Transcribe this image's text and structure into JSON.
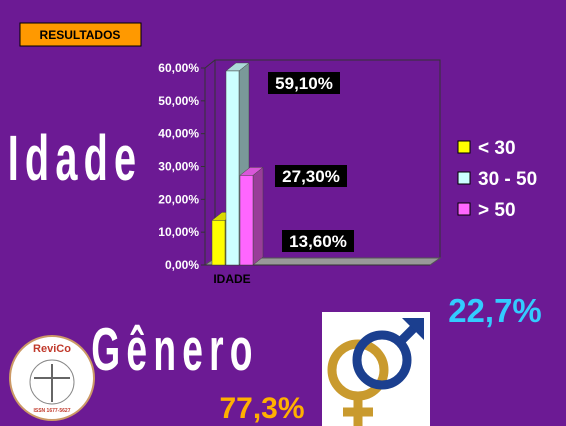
{
  "header": "RESULTADOS",
  "chart_data": {
    "type": "bar3d",
    "categories": [
      "IDADE"
    ],
    "series": [
      {
        "name": "< 30",
        "color": "#ffff00",
        "values": [
          13.6
        ],
        "value_labels": [
          "13,60%"
        ]
      },
      {
        "name": "30 - 50",
        "color": "#ccffff",
        "values": [
          59.1
        ],
        "value_labels": [
          "59,10%"
        ]
      },
      {
        "name": "> 50",
        "color": "#ff66ff",
        "values": [
          27.3
        ],
        "value_labels": [
          "27,30%"
        ]
      }
    ],
    "ylim": [
      0,
      60
    ],
    "yticks": [
      {
        "value": 0,
        "label": "0,00%"
      },
      {
        "value": 10,
        "label": "10,00%"
      },
      {
        "value": 20,
        "label": "20,00%"
      },
      {
        "value": 30,
        "label": "30,00%"
      },
      {
        "value": 40,
        "label": "40,00%"
      },
      {
        "value": 50,
        "label": "50,00%"
      },
      {
        "value": 60,
        "label": "60,00%"
      }
    ],
    "legend": "right"
  },
  "labels": {
    "age": "Idade",
    "gender": "Gênero"
  },
  "gender": {
    "values": [
      22.7,
      77.3
    ],
    "value_labels": [
      "22,7%",
      "77,3%"
    ]
  },
  "logo": {
    "name": "ReviCo",
    "issn": "ISSN 1677-5627"
  }
}
